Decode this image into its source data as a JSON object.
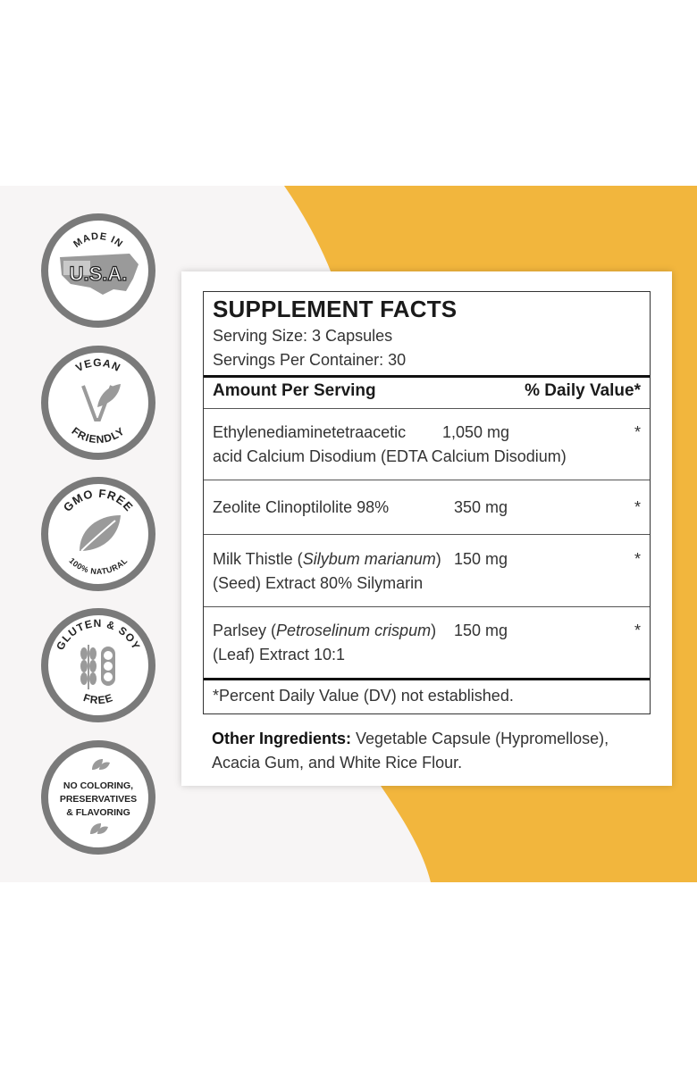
{
  "badges": [
    {
      "id": "made-in-usa",
      "top_text": "MADE IN",
      "center_text": "U.S.A.",
      "icon": "usa-flag-map-icon"
    },
    {
      "id": "vegan",
      "top_text": "VEGAN",
      "bottom_text": "FRIENDLY",
      "icon": "sprout-v-icon"
    },
    {
      "id": "gmo-free",
      "top_text": "GMO FREE",
      "bottom_text": "100% NATURAL",
      "icon": "leaf-icon"
    },
    {
      "id": "gluten-soy",
      "top_text": "GLUTEN & SOY",
      "bottom_text": "FREE",
      "icon": "wheat-soy-icon"
    },
    {
      "id": "no-coloring",
      "lines": [
        "NO COLORING,",
        "PRESERVATIVES",
        "& FLAVORING"
      ],
      "icon": "leaves-icon"
    }
  ],
  "facts": {
    "title": "SUPPLEMENT FACTS",
    "serving_size": "Serving Size: 3 Capsules",
    "servings_per_container": "Servings Per Container: 30",
    "amount_header": "Amount Per Serving",
    "dv_header": "% Daily Value*",
    "rows": [
      {
        "line1": "Ethylenediaminetetraacetic",
        "line2": "acid Calcium Disodium (EDTA Calcium Disodium)",
        "amount": "1,050 mg",
        "dv": "*"
      },
      {
        "line1": "Zeolite Clinoptilolite 98%",
        "amount": "350 mg",
        "dv": "*"
      },
      {
        "line1_a": "Milk Thistle (",
        "line1_i": "Silybum marianum",
        "line1_b": ")",
        "line2": "(Seed) Extract 80% Silymarin",
        "amount": "150 mg",
        "dv": "*"
      },
      {
        "line1_a": "Parlsey (",
        "line1_i": "Petroselinum crispum",
        "line1_b": ")",
        "line2": "(Leaf) Extract 10:1",
        "amount": "150 mg",
        "dv": "*"
      }
    ],
    "footnote": "*Percent Daily Value (DV) not established."
  },
  "other": {
    "label": "Other Ingredients:",
    "text": " Vegetable Capsule (Hypromellose), Acacia Gum, and White Rice Flour."
  },
  "colors": {
    "accent": "#f2b63d",
    "panel": "#f7f5f5",
    "badge_ring": "#7a7a7a"
  }
}
